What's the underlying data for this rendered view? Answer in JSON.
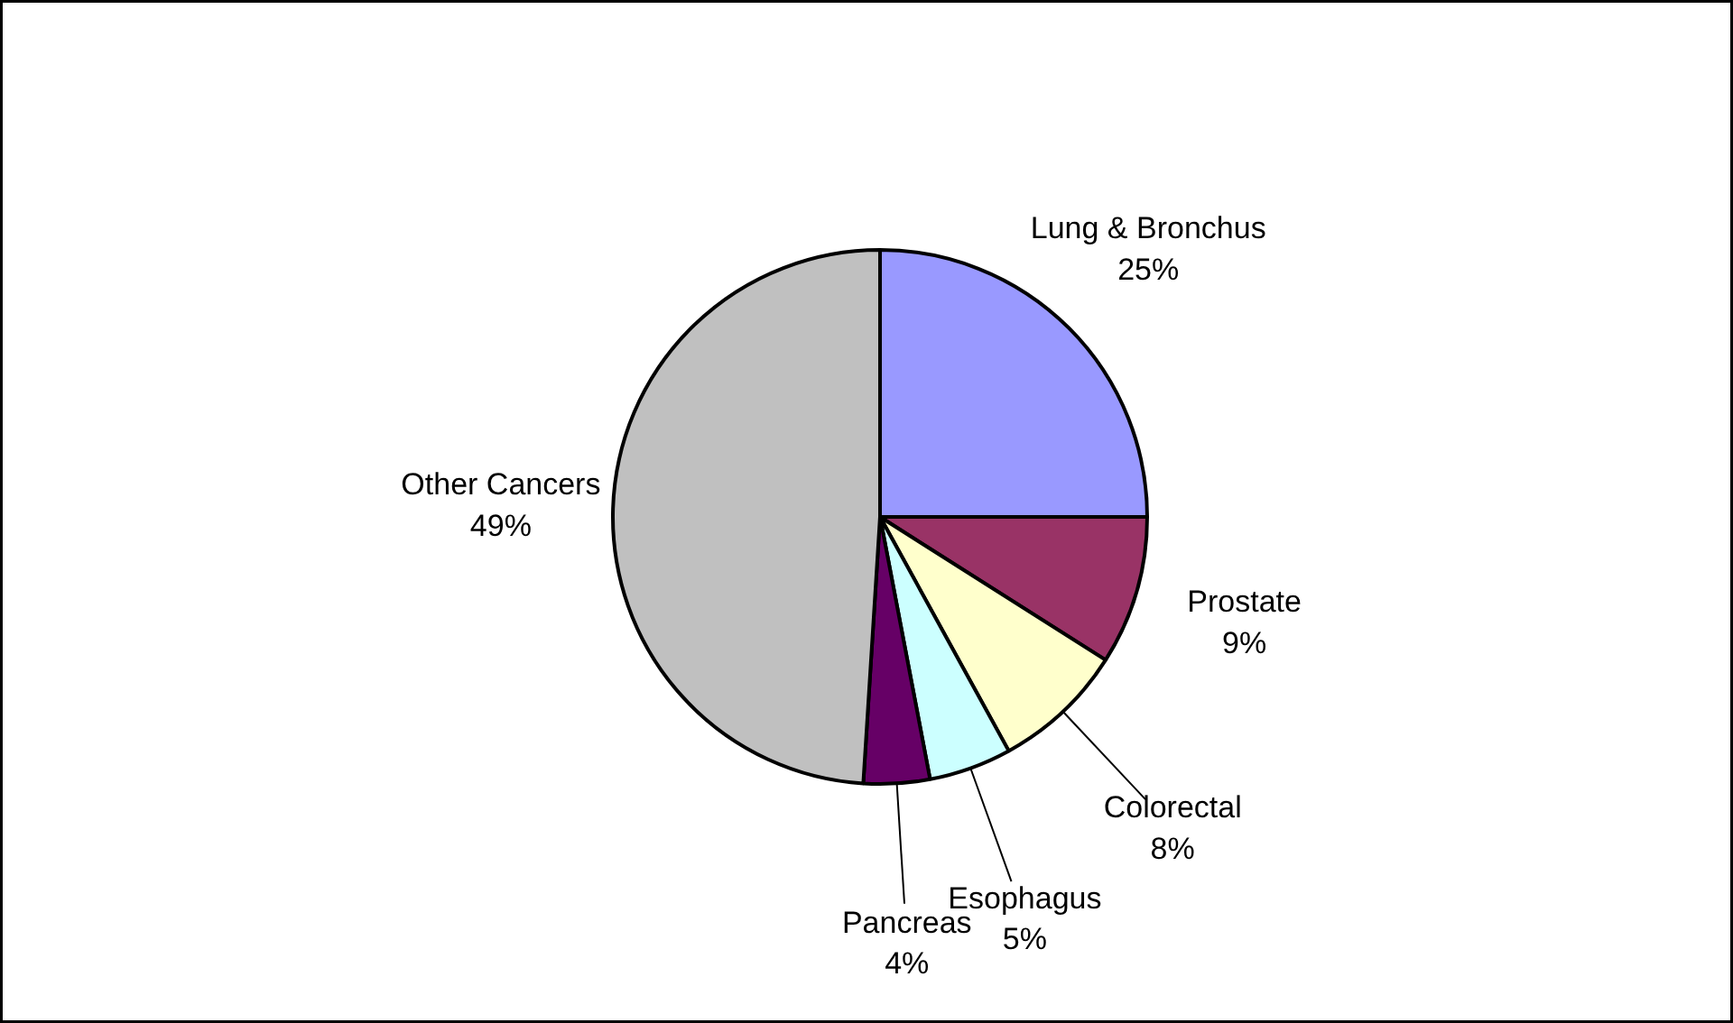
{
  "chart_data": {
    "type": "pie",
    "categories": [
      "Lung & Bronchus",
      "Prostate",
      "Colorectal",
      "Esophagus",
      "Pancreas",
      "Other Cancers"
    ],
    "values": [
      25,
      9,
      8,
      5,
      4,
      49
    ],
    "value_labels": [
      "25%",
      "9%",
      "8%",
      "5%",
      "4%",
      "49%"
    ],
    "colors": [
      "#9999ff",
      "#993366",
      "#ffffcc",
      "#ccffff",
      "#660066",
      "#c0c0c0"
    ],
    "legend": false
  }
}
